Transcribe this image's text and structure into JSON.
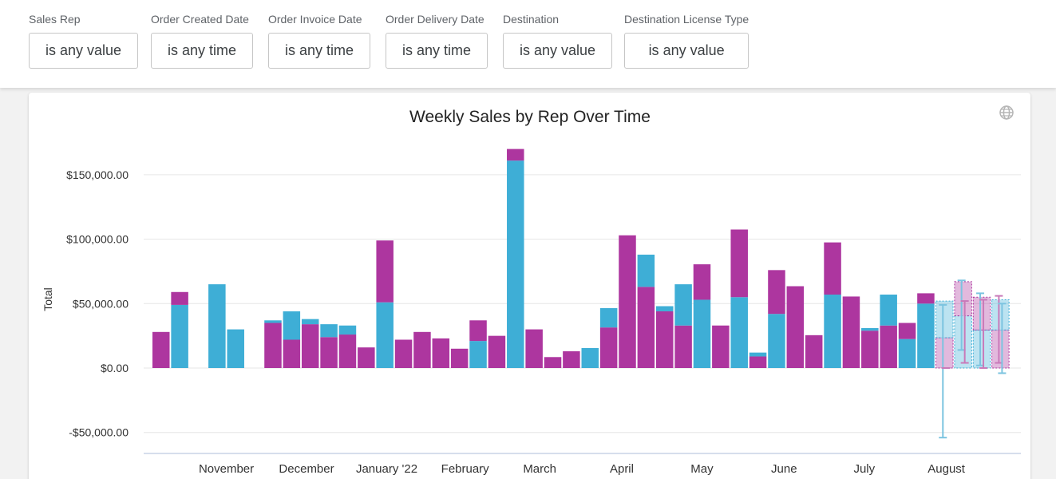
{
  "filters": [
    {
      "label": "Sales Rep",
      "value": "is any value"
    },
    {
      "label": "Order Created Date",
      "value": "is any time"
    },
    {
      "label": "Order Invoice Date",
      "value": "is any time"
    },
    {
      "label": "Order Delivery Date",
      "value": "is any time"
    },
    {
      "label": "Destination",
      "value": "is any value"
    },
    {
      "label": "Destination License Type",
      "value": "is any value"
    }
  ],
  "card": {
    "globe_icon": "globe-icon"
  },
  "chart_data": {
    "type": "bar",
    "stacked": true,
    "title": "Weekly Sales by Rep Over Time",
    "ylabel": "Total",
    "ylim": [
      -60000,
      175000
    ],
    "yticks": [
      -50000,
      0,
      50000,
      100000,
      150000
    ],
    "ytick_labels": [
      "-$50,000.00",
      "$0.00",
      "$50,000.00",
      "$100,000.00",
      "$150,000.00"
    ],
    "grid": true,
    "legend": "none",
    "colors": {
      "blue": "#3eaed6",
      "purple": "#ad369f"
    },
    "x_labels": [
      {
        "label": "November",
        "week": 3.5
      },
      {
        "label": "December",
        "week": 7.8
      },
      {
        "label": "January '22",
        "week": 12.1
      },
      {
        "label": "February",
        "week": 16.3
      },
      {
        "label": "March",
        "week": 20.3
      },
      {
        "label": "April",
        "week": 24.7
      },
      {
        "label": "May",
        "week": 29.0
      },
      {
        "label": "June",
        "week": 33.4
      },
      {
        "label": "July",
        "week": 37.7
      },
      {
        "label": "August",
        "week": 42.1
      }
    ],
    "bars": [
      {
        "week": 0,
        "segments": [
          {
            "color": "purple",
            "value": 28000
          }
        ]
      },
      {
        "week": 1,
        "segments": [
          {
            "color": "blue",
            "value": 49000
          },
          {
            "color": "purple",
            "value": 10000
          }
        ]
      },
      {
        "week": 3,
        "segments": [
          {
            "color": "blue",
            "value": 65000
          }
        ]
      },
      {
        "week": 4,
        "segments": [
          {
            "color": "blue",
            "value": 30000
          }
        ]
      },
      {
        "week": 6,
        "segments": [
          {
            "color": "purple",
            "value": 35000
          },
          {
            "color": "blue",
            "value": 2000
          }
        ]
      },
      {
        "week": 7,
        "segments": [
          {
            "color": "purple",
            "value": 22000
          },
          {
            "color": "blue",
            "value": 22000
          }
        ]
      },
      {
        "week": 8,
        "segments": [
          {
            "color": "purple",
            "value": 34000
          },
          {
            "color": "blue",
            "value": 4000
          }
        ]
      },
      {
        "week": 9,
        "segments": [
          {
            "color": "purple",
            "value": 24000
          },
          {
            "color": "blue",
            "value": 10000
          }
        ]
      },
      {
        "week": 10,
        "segments": [
          {
            "color": "purple",
            "value": 26000
          },
          {
            "color": "blue",
            "value": 7000
          }
        ]
      },
      {
        "week": 11,
        "segments": [
          {
            "color": "purple",
            "value": 16000
          }
        ]
      },
      {
        "week": 12,
        "segments": [
          {
            "color": "blue",
            "value": 51000
          },
          {
            "color": "purple",
            "value": 48000
          }
        ]
      },
      {
        "week": 13,
        "segments": [
          {
            "color": "purple",
            "value": 22000
          }
        ]
      },
      {
        "week": 14,
        "segments": [
          {
            "color": "purple",
            "value": 28000
          }
        ]
      },
      {
        "week": 15,
        "segments": [
          {
            "color": "purple",
            "value": 23000
          }
        ]
      },
      {
        "week": 16,
        "segments": [
          {
            "color": "purple",
            "value": 15000
          }
        ]
      },
      {
        "week": 17,
        "segments": [
          {
            "color": "blue",
            "value": 21000
          },
          {
            "color": "purple",
            "value": 16000
          }
        ]
      },
      {
        "week": 18,
        "segments": [
          {
            "color": "purple",
            "value": 25000
          }
        ]
      },
      {
        "week": 19,
        "segments": [
          {
            "color": "blue",
            "value": 161000
          },
          {
            "color": "purple",
            "value": 9000
          }
        ]
      },
      {
        "week": 20,
        "segments": [
          {
            "color": "purple",
            "value": 30000
          }
        ]
      },
      {
        "week": 21,
        "segments": [
          {
            "color": "purple",
            "value": 8500
          }
        ]
      },
      {
        "week": 22,
        "segments": [
          {
            "color": "purple",
            "value": 13000
          }
        ]
      },
      {
        "week": 23,
        "segments": [
          {
            "color": "blue",
            "value": 15500
          }
        ]
      },
      {
        "week": 24,
        "segments": [
          {
            "color": "purple",
            "value": 31500
          },
          {
            "color": "blue",
            "value": 15000
          }
        ]
      },
      {
        "week": 25,
        "segments": [
          {
            "color": "purple",
            "value": 103000
          }
        ]
      },
      {
        "week": 26,
        "segments": [
          {
            "color": "purple",
            "value": 63000
          },
          {
            "color": "blue",
            "value": 25000
          }
        ]
      },
      {
        "week": 27,
        "segments": [
          {
            "color": "purple",
            "value": 44000
          },
          {
            "color": "blue",
            "value": 4000
          }
        ]
      },
      {
        "week": 28,
        "segments": [
          {
            "color": "purple",
            "value": 33000
          },
          {
            "color": "blue",
            "value": 32000
          }
        ]
      },
      {
        "week": 29,
        "segments": [
          {
            "color": "blue",
            "value": 53000
          },
          {
            "color": "purple",
            "value": 27500
          }
        ]
      },
      {
        "week": 30,
        "segments": [
          {
            "color": "purple",
            "value": 33000
          }
        ]
      },
      {
        "week": 31,
        "segments": [
          {
            "color": "blue",
            "value": 55000
          },
          {
            "color": "purple",
            "value": 52500
          }
        ]
      },
      {
        "week": 32,
        "segments": [
          {
            "color": "purple",
            "value": 9000
          },
          {
            "color": "blue",
            "value": 3000
          }
        ]
      },
      {
        "week": 33,
        "segments": [
          {
            "color": "blue",
            "value": 42000
          },
          {
            "color": "purple",
            "value": 34000
          }
        ]
      },
      {
        "week": 34,
        "segments": [
          {
            "color": "purple",
            "value": 63500
          }
        ]
      },
      {
        "week": 35,
        "segments": [
          {
            "color": "purple",
            "value": 25500
          }
        ]
      },
      {
        "week": 36,
        "segments": [
          {
            "color": "blue",
            "value": 57000
          },
          {
            "color": "purple",
            "value": 40500
          }
        ]
      },
      {
        "week": 37,
        "segments": [
          {
            "color": "purple",
            "value": 55500
          }
        ]
      },
      {
        "week": 38,
        "segments": [
          {
            "color": "purple",
            "value": 29000
          },
          {
            "color": "blue",
            "value": 2000
          }
        ]
      },
      {
        "week": 39,
        "segments": [
          {
            "color": "purple",
            "value": 33000
          },
          {
            "color": "blue",
            "value": 24000
          }
        ]
      },
      {
        "week": 40,
        "segments": [
          {
            "color": "blue",
            "value": 22500
          },
          {
            "color": "purple",
            "value": 12500
          }
        ]
      },
      {
        "week": 41,
        "segments": [
          {
            "color": "blue",
            "value": 50000
          },
          {
            "color": "purple",
            "value": 8000
          }
        ]
      }
    ],
    "forecast": [
      {
        "week": 42,
        "segments": [
          {
            "color": "purple",
            "value": 23500
          },
          {
            "color": "blue",
            "value": 28500
          }
        ],
        "whiskers": [
          {
            "color": "blue",
            "low": -54000,
            "high": 49000
          },
          {
            "color": "purple",
            "low": 0,
            "high": 0
          }
        ]
      },
      {
        "week": 43,
        "segments": [
          {
            "color": "blue",
            "value": 40500
          },
          {
            "color": "purple",
            "value": 26500
          }
        ],
        "whiskers": [
          {
            "color": "blue",
            "low": 14000,
            "high": 68000
          },
          {
            "color": "purple",
            "low": 4000,
            "high": 52000
          }
        ]
      },
      {
        "week": 44,
        "segments": [
          {
            "color": "blue",
            "value": 29500
          },
          {
            "color": "purple",
            "value": 25500
          }
        ],
        "whiskers": [
          {
            "color": "blue",
            "low": 2000,
            "high": 58000
          },
          {
            "color": "purple",
            "low": 0,
            "high": 53000
          }
        ]
      },
      {
        "week": 45,
        "segments": [
          {
            "color": "purple",
            "value": 29500
          },
          {
            "color": "blue",
            "value": 23500
          }
        ],
        "whiskers": [
          {
            "color": "purple",
            "low": 4000,
            "high": 56000
          },
          {
            "color": "blue",
            "low": -4000,
            "high": 50000
          }
        ]
      }
    ]
  }
}
